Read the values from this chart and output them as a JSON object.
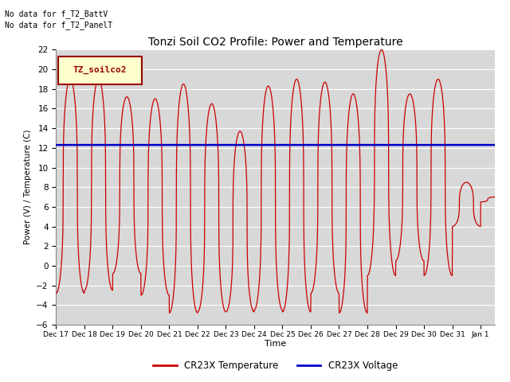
{
  "title": "Tonzi Soil CO2 Profile: Power and Temperature",
  "ylabel": "Power (V) / Temperature (C)",
  "xlabel": "Time",
  "ylim": [
    -6,
    22
  ],
  "yticks": [
    -6,
    -4,
    -2,
    0,
    2,
    4,
    6,
    8,
    10,
    12,
    14,
    16,
    18,
    20,
    22
  ],
  "bg_color": "#d8d8d8",
  "fig_color": "#ffffff",
  "no_data_text1": "No data for f_T2_BattV",
  "no_data_text2": "No data for f_T2_PanelT",
  "legend_box_label": "TZ_soilco2",
  "legend_box_facecolor": "#ffffcc",
  "legend_box_edgecolor": "#990000",
  "voltage_value": 12.3,
  "voltage_color": "#0000cc",
  "temp_color": "#cc0000",
  "legend_temp_label": "CR23X Temperature",
  "legend_volt_label": "CR23X Voltage",
  "total_days": 15.5,
  "temp_peaks": [
    19.0,
    19.0,
    17.2,
    17.0,
    18.5,
    16.5,
    13.7,
    18.3,
    19.0,
    18.7,
    17.5,
    22.0,
    17.5,
    19.0,
    8.5,
    7.0
  ],
  "temp_troughs": [
    -2.8,
    -2.5,
    -0.8,
    -3.0,
    -4.8,
    -4.7,
    -4.7,
    -4.5,
    -4.7,
    -2.8,
    -4.8,
    -1.0,
    0.5,
    -1.0,
    4.0,
    6.5
  ],
  "peak_sharpness": 3.0
}
